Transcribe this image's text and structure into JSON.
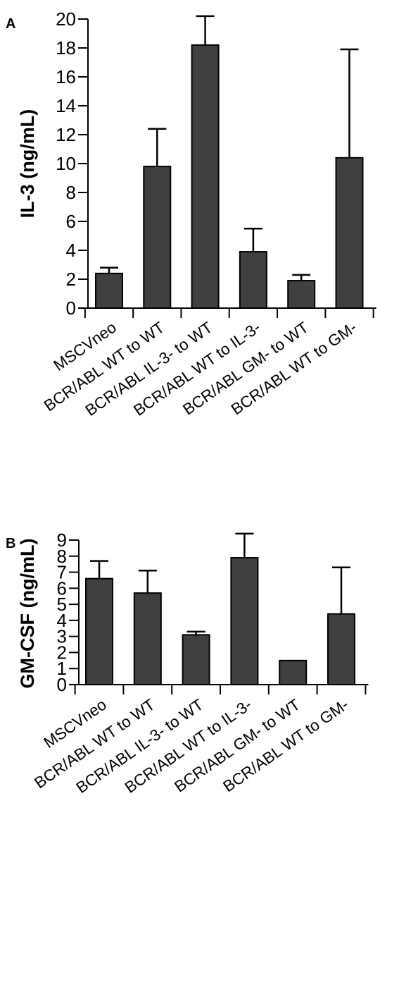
{
  "chart_data": [
    {
      "type": "bar",
      "panel": "A",
      "ylabel": "IL-3 (ng/mL)",
      "ylim": [
        0,
        20
      ],
      "yticks": [
        "0",
        "2",
        "4",
        "6",
        "8",
        "10",
        "12",
        "14",
        "16",
        "18",
        "20"
      ],
      "categories": [
        "MSCVneo",
        "BCR/ABL WT to WT",
        "BCR/ABL IL-3- to WT",
        "BCR/ABL WT to IL-3-",
        "BCR/ABL GM- to WT",
        "BCR/ABL WT to GM-"
      ],
      "values": [
        2.4,
        9.8,
        18.2,
        3.9,
        1.9,
        10.4
      ],
      "error_upper": [
        0.4,
        2.6,
        2.0,
        1.6,
        0.4,
        7.5
      ],
      "bar_color": "#404040"
    },
    {
      "type": "bar",
      "panel": "B",
      "ylabel": "GM-CSF (ng/mL)",
      "ylim": [
        0,
        9
      ],
      "yticks": [
        "0",
        "1",
        "2",
        "3",
        "4",
        "5",
        "6",
        "7",
        "8",
        "9"
      ],
      "categories": [
        "MSCVneo",
        "BCR/ABL WT to WT",
        "BCR/ABL IL-3- to WT",
        "BCR/ABL WT to IL-3-",
        "BCR/ABL GM- to WT",
        "BCR/ABL WT to GM-"
      ],
      "values": [
        6.6,
        5.7,
        3.1,
        7.9,
        1.5,
        4.4
      ],
      "error_upper": [
        1.1,
        1.4,
        0.2,
        1.5,
        0.0,
        2.9
      ],
      "bar_color": "#404040"
    }
  ]
}
